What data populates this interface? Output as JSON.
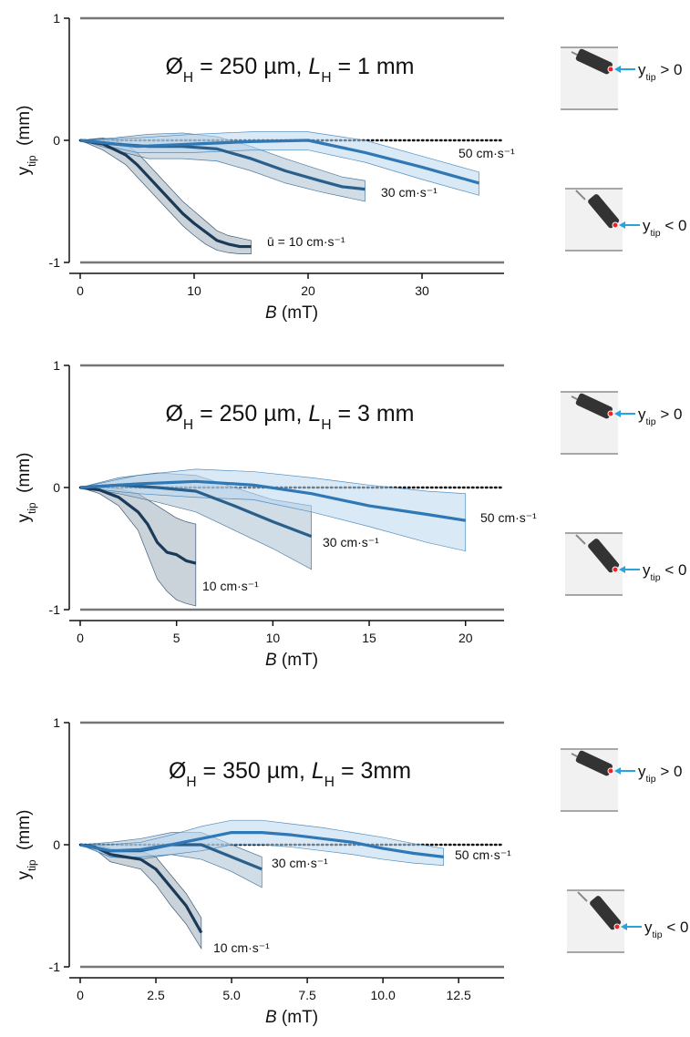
{
  "chart_data": [
    {
      "type": "line",
      "title": [
        {
          "text": "Ø"
        },
        {
          "text": "H",
          "sub": true
        },
        {
          "text": " = 250 µm, "
        },
        {
          "text": "L",
          "italic": true
        },
        {
          "text": "H",
          "sub": true
        },
        {
          "text": " = 1 mm"
        }
      ],
      "xlabel": [
        {
          "text": "B",
          "italic": true
        },
        {
          "text": " (mT)"
        }
      ],
      "ylabel": [
        {
          "text": "y"
        },
        {
          "text": "tip",
          "sub": true
        },
        {
          "text": "  (mm)"
        }
      ],
      "xlim": [
        0,
        37.2
      ],
      "xticks": [
        0,
        10,
        20,
        30
      ],
      "ylim": [
        -1,
        1
      ],
      "yticks": [
        -1,
        0,
        1
      ],
      "grid": true,
      "annotations": [
        [
          {
            "text": "y"
          },
          {
            "text": "tip",
            "sub": true
          },
          {
            "text": " > 0"
          }
        ],
        [
          {
            "text": "y"
          },
          {
            "text": "tip",
            "sub": true
          },
          {
            "text": " < 0"
          }
        ]
      ],
      "series": [
        {
          "name": "ū = 10 cm·s⁻¹",
          "color": "#1b3a57",
          "band_color": "#9eadbb",
          "x": [
            0,
            2,
            4,
            5,
            6,
            7,
            8,
            9,
            10,
            11,
            12,
            13,
            14,
            15
          ],
          "values": [
            0,
            -0.03,
            -0.12,
            -0.2,
            -0.3,
            -0.4,
            -0.5,
            -0.6,
            -0.68,
            -0.75,
            -0.82,
            -0.85,
            -0.87,
            -0.87
          ],
          "upper": [
            0,
            0.02,
            -0.03,
            -0.1,
            -0.2,
            -0.3,
            -0.4,
            -0.5,
            -0.58,
            -0.66,
            -0.74,
            -0.78,
            -0.8,
            -0.82
          ],
          "lower": [
            0,
            -0.08,
            -0.2,
            -0.3,
            -0.4,
            -0.5,
            -0.6,
            -0.7,
            -0.78,
            -0.85,
            -0.9,
            -0.92,
            -0.93,
            -0.93
          ]
        },
        {
          "name": "30 cm·s⁻¹",
          "color": "#2a5f8c",
          "band_color": "#aabfd2",
          "x": [
            0,
            3,
            6,
            9,
            12,
            15,
            18,
            21,
            23,
            25
          ],
          "values": [
            0,
            -0.03,
            -0.05,
            -0.05,
            -0.07,
            -0.15,
            -0.25,
            -0.33,
            -0.38,
            -0.4
          ],
          "upper": [
            0,
            0.02,
            0.05,
            0.06,
            0.03,
            -0.05,
            -0.15,
            -0.24,
            -0.3,
            -0.33
          ],
          "lower": [
            0,
            -0.08,
            -0.15,
            -0.15,
            -0.17,
            -0.25,
            -0.35,
            -0.42,
            -0.46,
            -0.5
          ]
        },
        {
          "name": "50 cm·s⁻¹",
          "color": "#2f78b5",
          "band_color": "#b9d7ef",
          "x": [
            0,
            5,
            10,
            15,
            20,
            25,
            30,
            35
          ],
          "values": [
            0,
            -0.05,
            -0.03,
            -0.01,
            0,
            -0.1,
            -0.22,
            -0.35
          ],
          "upper": [
            0,
            0.02,
            0.05,
            0.07,
            0.07,
            0,
            -0.13,
            -0.26
          ],
          "lower": [
            0,
            -0.1,
            -0.1,
            -0.08,
            -0.08,
            -0.18,
            -0.32,
            -0.45
          ]
        }
      ]
    },
    {
      "type": "line",
      "title": [
        {
          "text": "Ø"
        },
        {
          "text": "H",
          "sub": true
        },
        {
          "text": " = 250 µm, "
        },
        {
          "text": "L",
          "italic": true
        },
        {
          "text": "H",
          "sub": true
        },
        {
          "text": " = 3 mm"
        }
      ],
      "xlabel": [
        {
          "text": "B",
          "italic": true
        },
        {
          "text": " (mT)"
        }
      ],
      "ylabel": [
        {
          "text": "y"
        },
        {
          "text": "tip",
          "sub": true
        },
        {
          "text": "  (mm)"
        }
      ],
      "xlim": [
        0,
        22
      ],
      "xticks": [
        0,
        5,
        10,
        15,
        20
      ],
      "ylim": [
        -1,
        1
      ],
      "yticks": [
        -1,
        0,
        1
      ],
      "grid": true,
      "annotations": [
        [
          {
            "text": "y"
          },
          {
            "text": "tip",
            "sub": true
          },
          {
            "text": " > 0"
          }
        ],
        [
          {
            "text": "y"
          },
          {
            "text": "tip",
            "sub": true
          },
          {
            "text": " < 0"
          }
        ]
      ],
      "series": [
        {
          "name": "10 cm·s⁻¹",
          "color": "#1b3a57",
          "band_color": "#9eadbb",
          "x": [
            0,
            1,
            2,
            3,
            3.5,
            4,
            4.5,
            5,
            5.5,
            6
          ],
          "values": [
            0,
            -0.02,
            -0.08,
            -0.2,
            -0.3,
            -0.45,
            -0.53,
            -0.55,
            -0.6,
            -0.62
          ],
          "upper": [
            0,
            0,
            -0.01,
            -0.05,
            -0.1,
            -0.15,
            -0.2,
            -0.25,
            -0.28,
            -0.3
          ],
          "lower": [
            0,
            -0.05,
            -0.15,
            -0.35,
            -0.55,
            -0.75,
            -0.85,
            -0.92,
            -0.95,
            -0.97
          ]
        },
        {
          "name": "30 cm·s⁻¹",
          "color": "#2a5f8c",
          "band_color": "#aabfd2",
          "x": [
            0,
            2,
            4,
            6,
            8,
            10,
            12
          ],
          "values": [
            0,
            0.02,
            0,
            -0.03,
            -0.15,
            -0.28,
            -0.4
          ],
          "upper": [
            0,
            0.08,
            0.12,
            0.1,
            0,
            -0.1,
            -0.15
          ],
          "lower": [
            0,
            -0.05,
            -0.12,
            -0.2,
            -0.35,
            -0.5,
            -0.67
          ]
        },
        {
          "name": "50 cm·s⁻¹",
          "color": "#2f78b5",
          "band_color": "#b9d7ef",
          "x": [
            0,
            3,
            6,
            9,
            12,
            15,
            18,
            20
          ],
          "values": [
            0,
            0.03,
            0.05,
            0.02,
            -0.05,
            -0.15,
            -0.22,
            -0.27
          ],
          "upper": [
            0,
            0.1,
            0.15,
            0.13,
            0.08,
            0.02,
            -0.03,
            -0.05
          ],
          "lower": [
            0,
            -0.05,
            -0.08,
            -0.1,
            -0.2,
            -0.32,
            -0.45,
            -0.52
          ]
        }
      ]
    },
    {
      "type": "line",
      "title": [
        {
          "text": "Ø"
        },
        {
          "text": "H",
          "sub": true
        },
        {
          "text": " = 350 µm, "
        },
        {
          "text": "L",
          "italic": true
        },
        {
          "text": "H",
          "sub": true
        },
        {
          "text": " = 3mm"
        }
      ],
      "xlabel": [
        {
          "text": "B",
          "italic": true
        },
        {
          "text": " (mT)"
        }
      ],
      "ylabel": [
        {
          "text": "y"
        },
        {
          "text": "tip",
          "sub": true
        },
        {
          "text": "  (mm)"
        }
      ],
      "xlim": [
        0,
        14
      ],
      "xticks": [
        0,
        2.5,
        {
          "value": 5,
          "label": "5.0"
        },
        7.5,
        {
          "value": 10,
          "label": "10.0"
        },
        12.5
      ],
      "ylim": [
        -1,
        1
      ],
      "yticks": [
        -1,
        0,
        1
      ],
      "grid": true,
      "annotations": [
        [
          {
            "text": "y"
          },
          {
            "text": "tip",
            "sub": true
          },
          {
            "text": " > 0"
          }
        ],
        [
          {
            "text": "y"
          },
          {
            "text": "tip",
            "sub": true
          },
          {
            "text": " < 0"
          }
        ]
      ],
      "series": [
        {
          "name": "10 cm·s⁻¹",
          "color": "#1b3a57",
          "band_color": "#9eadbb",
          "x": [
            0,
            0.5,
            1,
            1.5,
            2,
            2.5,
            3,
            3.5,
            4
          ],
          "values": [
            0,
            -0.02,
            -0.08,
            -0.1,
            -0.12,
            -0.2,
            -0.35,
            -0.5,
            -0.72
          ],
          "upper": [
            0,
            0,
            -0.03,
            -0.05,
            -0.05,
            -0.1,
            -0.25,
            -0.4,
            -0.6
          ],
          "lower": [
            0,
            -0.04,
            -0.14,
            -0.17,
            -0.2,
            -0.33,
            -0.5,
            -0.65,
            -0.85
          ]
        },
        {
          "name": "30 cm·s⁻¹",
          "color": "#2a5f8c",
          "band_color": "#aabfd2",
          "x": [
            0,
            1,
            2,
            3,
            4,
            5,
            6
          ],
          "values": [
            0,
            -0.05,
            -0.05,
            0,
            0,
            -0.1,
            -0.2
          ],
          "upper": [
            0,
            0.02,
            0.05,
            0.1,
            0.1,
            0,
            -0.1
          ],
          "lower": [
            0,
            -0.1,
            -0.12,
            -0.08,
            -0.12,
            -0.22,
            -0.35
          ]
        },
        {
          "name": "50 cm·s⁻¹",
          "color": "#2f78b5",
          "band_color": "#b9d7ef",
          "x": [
            0,
            1,
            2,
            3,
            4,
            5,
            6,
            7,
            8,
            9,
            10,
            11,
            12
          ],
          "values": [
            0,
            -0.05,
            -0.04,
            0,
            0.05,
            0.1,
            0.1,
            0.08,
            0.05,
            0.02,
            -0.03,
            -0.07,
            -0.1
          ],
          "upper": [
            0,
            0,
            0.02,
            0.08,
            0.15,
            0.2,
            0.2,
            0.17,
            0.14,
            0.1,
            0.06,
            0.01,
            -0.03
          ],
          "lower": [
            0,
            -0.1,
            -0.1,
            -0.08,
            -0.05,
            0,
            0,
            -0.02,
            -0.05,
            -0.08,
            -0.12,
            -0.15,
            -0.17
          ]
        }
      ]
    }
  ]
}
